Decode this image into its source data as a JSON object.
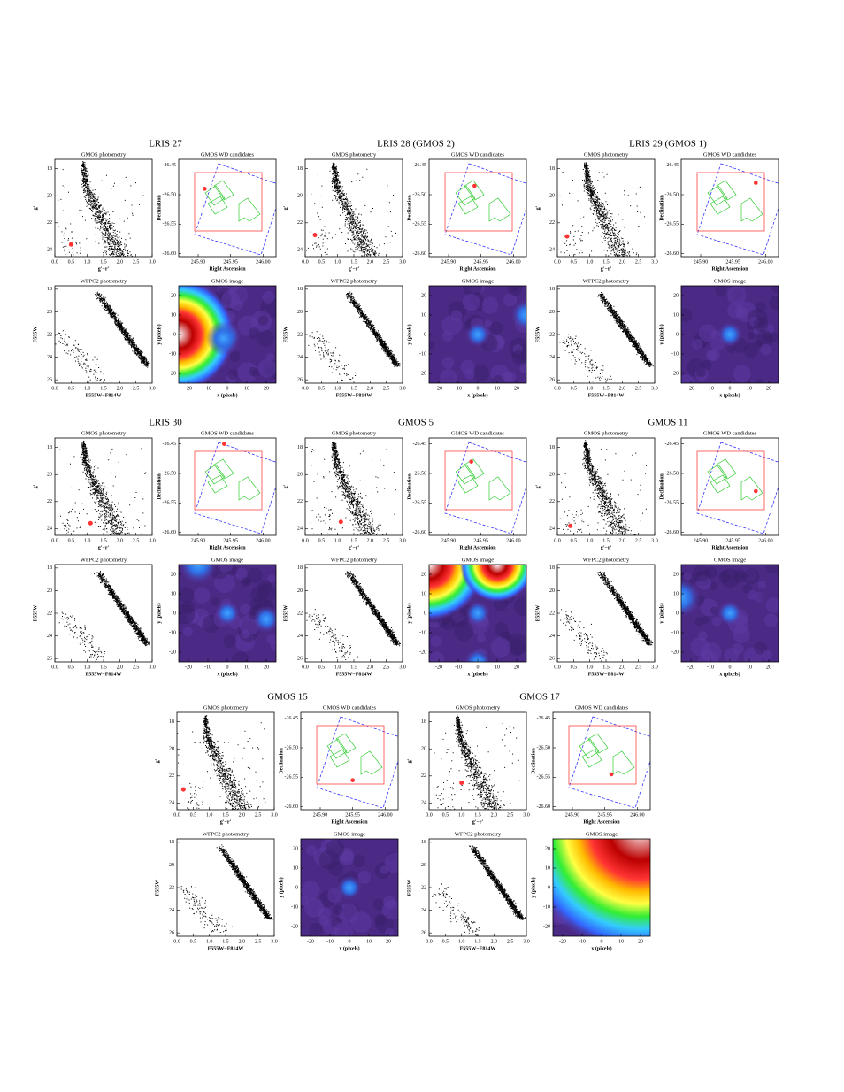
{
  "panels": {
    "gmos_cmd": {
      "title": "GMOS photometry",
      "xlabel": "g'−r'",
      "ylabel": "g'",
      "xlim": [
        0,
        3
      ],
      "ylim": [
        24.5,
        17.3
      ],
      "xticks": [
        {
          "value": 0,
          "label": "0.0"
        },
        {
          "value": 0.5,
          "label": "0.5"
        },
        {
          "value": 1,
          "label": "1.0"
        },
        {
          "value": 1.5,
          "label": "1.5"
        },
        {
          "value": 2,
          "label": "2.0"
        },
        {
          "value": 2.5,
          "label": "2.5"
        },
        {
          "value": 3,
          "label": "3.0"
        }
      ],
      "yticks": [
        18,
        20,
        22,
        24
      ]
    },
    "sky": {
      "title": "GMOS WD candidates",
      "xlabel": "Right Ascension",
      "ylabel": "Declination",
      "xlim": [
        245.87,
        246.02
      ],
      "ylim": [
        -26.605,
        -26.44
      ],
      "xticks": [
        {
          "value": 245.9,
          "label": "245.90"
        },
        245.95,
        {
          "value": 246,
          "label": "246.00"
        }
      ],
      "yticks": [
        -26.45,
        {
          "value": -26.5,
          "label": "-26.50"
        },
        -26.55,
        {
          "value": -26.6,
          "label": "-26.60"
        }
      ]
    },
    "wfpc2_cmd": {
      "title": "WFPC2 photometry",
      "xlabel": "F555W−F814W",
      "ylabel": "F555W",
      "xlim": [
        0,
        3
      ],
      "ylim": [
        26.3,
        17.7
      ],
      "xticks": [
        {
          "value": 0,
          "label": "0.0"
        },
        {
          "value": 0.5,
          "label": "0.5"
        },
        {
          "value": 1,
          "label": "1.0"
        },
        {
          "value": 1.5,
          "label": "1.5"
        },
        {
          "value": 2,
          "label": "2.0"
        },
        {
          "value": 2.5,
          "label": "2.5"
        },
        {
          "value": 3,
          "label": "3.0"
        }
      ],
      "yticks": [
        18,
        20,
        22,
        24,
        26
      ]
    },
    "image": {
      "title": "GMOS image",
      "xlabel": "x (pixels)",
      "ylabel": "y (pixels)",
      "xlim": [
        -25,
        25
      ],
      "ylim": [
        -25,
        25
      ],
      "xticks": [
        -20,
        -10,
        0,
        10,
        20
      ],
      "yticks": [
        -20,
        -10,
        0,
        10,
        20
      ]
    }
  },
  "groups": [
    {
      "title": "LRIS 27",
      "cmd_point": [
        0.5,
        23.6
      ],
      "sky_point": [
        245.91,
        -26.49
      ]
    },
    {
      "title": "LRIS 28 (GMOS 2)",
      "cmd_point": [
        0.3,
        22.9
      ],
      "sky_point": [
        245.94,
        -26.485
      ]
    },
    {
      "title": "LRIS 29 (GMOS 1)",
      "cmd_point": [
        0.3,
        23.0
      ],
      "sky_point": [
        245.985,
        -26.48
      ]
    },
    {
      "title": "LRIS 30",
      "cmd_point": [
        1.1,
        23.6
      ],
      "sky_point": [
        245.94,
        -26.45
      ]
    },
    {
      "title": "GMOS 5",
      "cmd_point": [
        1.1,
        23.5
      ],
      "sky_point": [
        245.935,
        -26.48
      ]
    },
    {
      "title": "GMOS 11",
      "cmd_point": [
        0.4,
        23.8
      ],
      "sky_point": [
        245.985,
        -26.53
      ]
    },
    {
      "title": "GMOS 15",
      "cmd_point": [
        0.2,
        23.0
      ],
      "sky_point": [
        245.95,
        -26.555
      ]
    },
    {
      "title": "GMOS 17",
      "cmd_point": [
        1.0,
        22.5
      ],
      "sky_point": [
        245.96,
        -26.545
      ]
    }
  ]
}
